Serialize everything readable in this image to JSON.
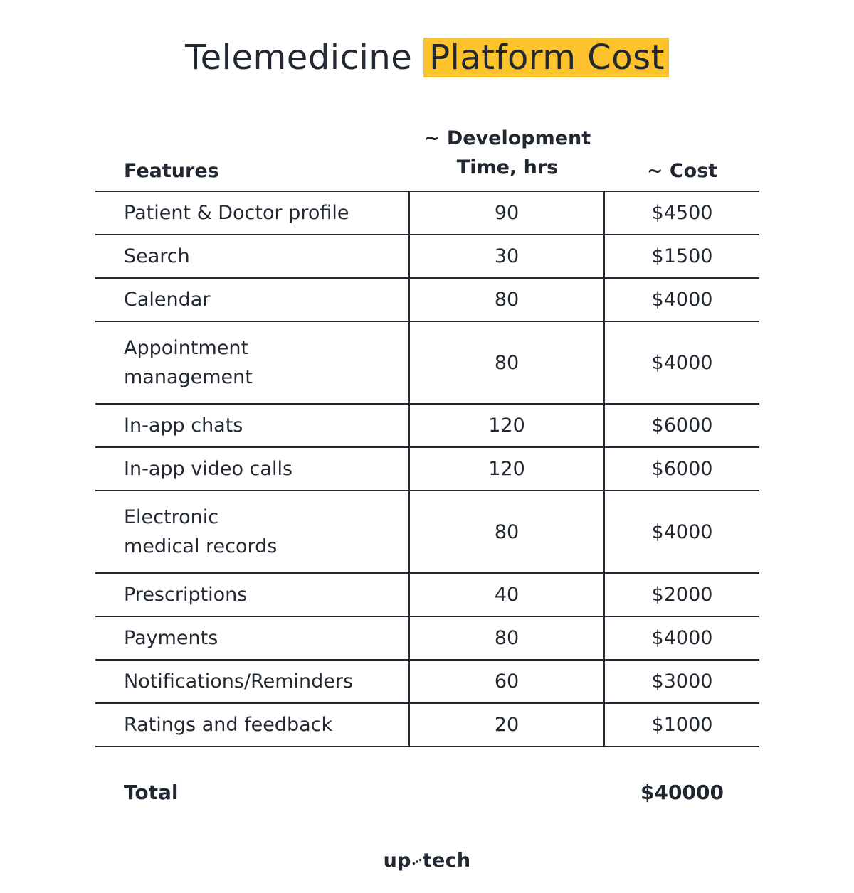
{
  "title": {
    "part1": "Telemedicine",
    "part2": "Platform Cost",
    "highlight_color": "#fcc32d"
  },
  "header": {
    "features": "Features",
    "time_line1": "~ Development",
    "time_line2": "Time, hrs",
    "cost": "~ Cost"
  },
  "rows": [
    {
      "feature": "Patient & Doctor profile",
      "hours": "90",
      "cost": "$4500"
    },
    {
      "feature": "Search",
      "hours": "30",
      "cost": "$1500"
    },
    {
      "feature": "Calendar",
      "hours": "80",
      "cost": "$4000"
    },
    {
      "feature": "Appointment\nmanagement",
      "hours": "80",
      "cost": "$4000"
    },
    {
      "feature": "In-app chats",
      "hours": "120",
      "cost": "$6000"
    },
    {
      "feature": "In-app video calls",
      "hours": "120",
      "cost": "$6000"
    },
    {
      "feature": "Electronic\nmedical records",
      "hours": "80",
      "cost": "$4000"
    },
    {
      "feature": "Prescriptions",
      "hours": "40",
      "cost": "$2000"
    },
    {
      "feature": "Payments",
      "hours": "80",
      "cost": "$4000"
    },
    {
      "feature": "Notifications/Reminders",
      "hours": "60",
      "cost": "$3000"
    },
    {
      "feature": "Ratings and feedback",
      "hours": "20",
      "cost": "$1000"
    }
  ],
  "total": {
    "label": "Total",
    "cost": "$40000"
  },
  "logo": {
    "left": "up",
    "right": "tech"
  }
}
